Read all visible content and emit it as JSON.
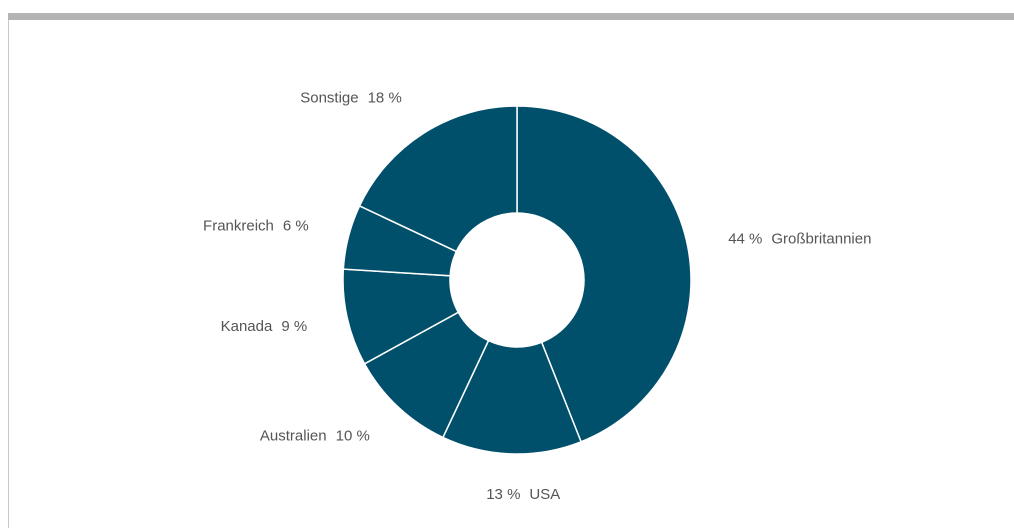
{
  "chart_data": {
    "type": "donut",
    "categories": [
      "Großbritannien",
      "USA",
      "Australien",
      "Kanada",
      "Frankreich",
      "Sonstige"
    ],
    "values": [
      44,
      13,
      10,
      9,
      6,
      18
    ],
    "value_labels": [
      "44 %",
      "13 %",
      "10 %",
      "9 %",
      "6 %",
      "18 %"
    ],
    "color": "#004f6b"
  }
}
